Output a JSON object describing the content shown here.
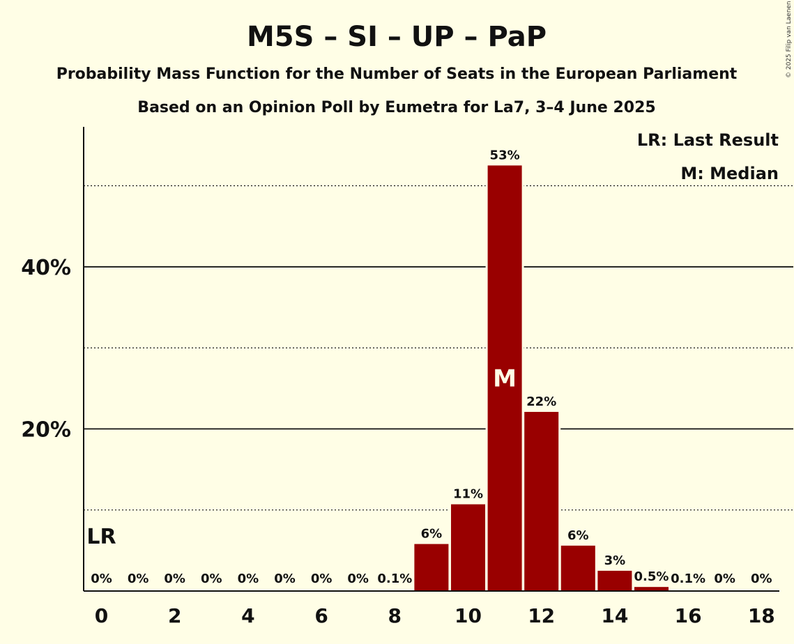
{
  "chart_data": {
    "type": "bar",
    "title": "M5S – SI – UP – PaP",
    "subtitle_1": "Probability Mass Function for the Number of Seats in the European Parliament",
    "subtitle_2": "Based on an Opinion Poll by Eumetra for La7, 3–4 June 2025",
    "x": [
      0,
      1,
      2,
      3,
      4,
      5,
      6,
      7,
      8,
      9,
      10,
      11,
      12,
      13,
      14,
      15,
      16,
      17,
      18
    ],
    "values": [
      0,
      0,
      0,
      0,
      0,
      0,
      0,
      0,
      0.1,
      5.8,
      10.7,
      52.5,
      22.1,
      5.6,
      2.5,
      0.5,
      0.1,
      0,
      0
    ],
    "data_labels": [
      "0%",
      "0%",
      "0%",
      "0%",
      "0%",
      "0%",
      "0%",
      "0%",
      "0.1%",
      "6%",
      "11%",
      "53%",
      "22%",
      "6%",
      "3%",
      "0.5%",
      "0.1%",
      "0%",
      "0%"
    ],
    "x_tick_labels": [
      "0",
      "2",
      "4",
      "6",
      "8",
      "10",
      "12",
      "14",
      "16",
      "18"
    ],
    "y_tick_labels": [
      "20%",
      "40%"
    ],
    "ylim": [
      0,
      57
    ],
    "major_grid": [
      20,
      40
    ],
    "minor_grid": [
      10,
      30,
      50
    ],
    "median_seat": 11,
    "median_marker": "M",
    "last_result_seat": 0,
    "last_result_marker": "LR",
    "legend": [
      "LR: Last Result",
      "M: Median"
    ],
    "legend_position": "top-right",
    "bar_color": "#990000",
    "background_color": "#FFFEE6",
    "copyright": "© 2025 Filip van Laenen"
  }
}
